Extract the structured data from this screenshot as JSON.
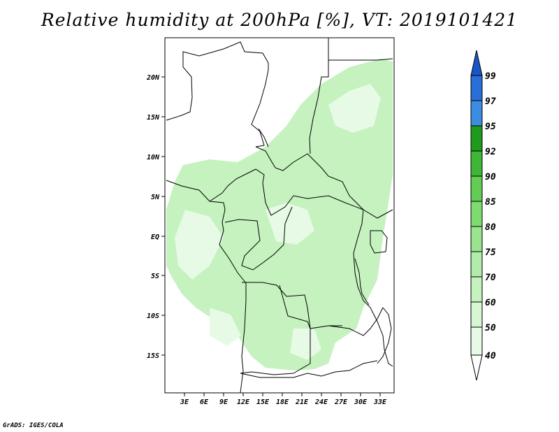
{
  "title": "Relative humidity at 200hPa [%], VT: 2019101421",
  "credit": "GrADS: IGES/COLA",
  "map": {
    "variable": "Relative humidity",
    "level": "200hPa",
    "units": "%",
    "valid_time": "2019101421",
    "lat_tick_labels": [
      "20N",
      "15N",
      "10N",
      "5N",
      "EQ",
      "5S",
      "10S",
      "15S"
    ],
    "lon_tick_labels": [
      "3E",
      "6E",
      "9E",
      "12E",
      "15E",
      "18E",
      "21E",
      "24E",
      "27E",
      "30E",
      "33E"
    ]
  },
  "colorbar": {
    "levels": [
      "40",
      "50",
      "60",
      "70",
      "75",
      "80",
      "85",
      "90",
      "92",
      "95",
      "97",
      "99"
    ],
    "colors": [
      "#e6fae6",
      "#d6f7d2",
      "#c5f2bf",
      "#b1ecaa",
      "#9ae48f",
      "#7fda72",
      "#62cc55",
      "#3fb637",
      "#1f9a1f",
      "#3b8de0",
      "#2a6fd8",
      "#1a55c8"
    ],
    "lower_arrow_color": "#ffffff",
    "upper_arrow_color": "#1a55c8"
  },
  "colors": {
    "land_fill": "#c5f2bf",
    "land_fill_light": "#e6fae6",
    "border": "#000000"
  }
}
